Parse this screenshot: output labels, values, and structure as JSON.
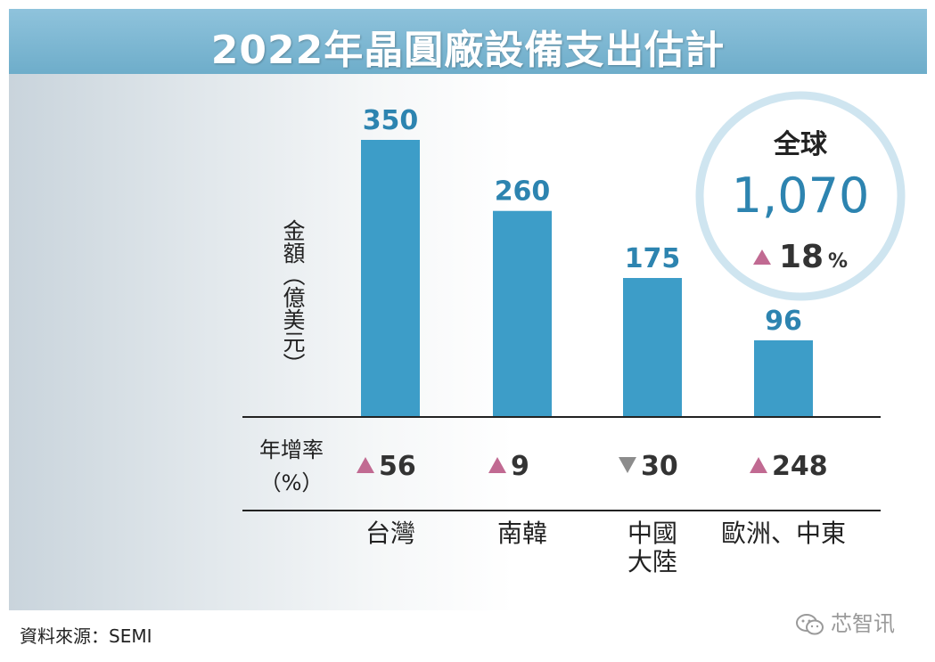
{
  "title": "2022年晶圓廠設備支出估計",
  "chart_data": {
    "type": "bar",
    "title": "2022年晶圓廠設備支出估計",
    "ylabel": "金額（億美元）",
    "categories": [
      "台灣",
      "南韓",
      "中國大陸",
      "歐洲、中東"
    ],
    "category_display": [
      [
        "台灣"
      ],
      [
        "南韓"
      ],
      [
        "中國",
        "大陸"
      ],
      [
        "歐洲、中東"
      ]
    ],
    "values": [
      350,
      260,
      175,
      96
    ],
    "growth_label": "年增率（%）",
    "growth_values": [
      56,
      9,
      -30,
      248
    ],
    "global": {
      "label": "全球",
      "value": 1070,
      "value_text": "1,070",
      "growth": 18,
      "growth_unit": "%"
    },
    "colors": {
      "bar": "#3d9dc8",
      "value_text": "#2d84b0",
      "up": "#c16a92",
      "down": "#8c8c8c",
      "title_bg": "#7fb7d3"
    },
    "ylim": [
      0,
      350
    ]
  },
  "source": "資料來源：SEMI",
  "watermark": "芯智讯",
  "icons": {
    "growth_up": "triangle-up-icon",
    "growth_down": "triangle-down-icon",
    "watermark": "wechat-icon"
  }
}
